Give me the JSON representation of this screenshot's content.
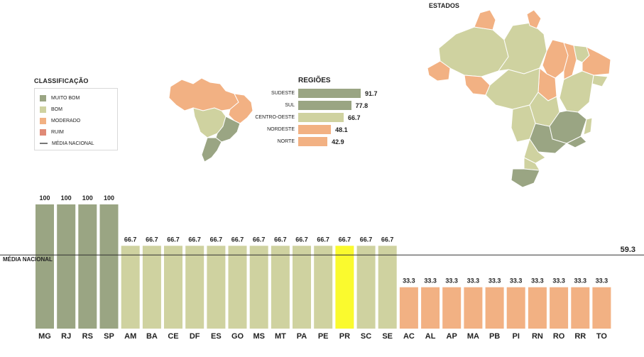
{
  "colors": {
    "muito_bom": "#9aa583",
    "bom": "#cfd2a0",
    "moderado": "#f2b183",
    "ruim": "#e08a76",
    "highlight": "#fafa2e",
    "media_line": "#333333"
  },
  "legend": {
    "title": "CLASSIFICAÇÃO",
    "items": [
      {
        "label": "MUITO BOM",
        "color": "#9aa583"
      },
      {
        "label": "BOM",
        "color": "#cfd2a0"
      },
      {
        "label": "MODERADO",
        "color": "#f2b183"
      },
      {
        "label": "RUIM",
        "color": "#e08a76"
      }
    ],
    "line_label": "MÉDIA NACIONAL"
  },
  "maps": {
    "regions_title": "REGIÕES",
    "states_title": "ESTADOS"
  },
  "chart_data": [
    {
      "type": "bar",
      "title": "REGIÕES",
      "orientation": "horizontal",
      "categories": [
        "SUDESTE",
        "SUL",
        "CENTRO-OESTE",
        "NORDESTE",
        "NORTE"
      ],
      "values": [
        91.7,
        77.8,
        66.7,
        48.1,
        42.9
      ],
      "value_labels": [
        "91.7",
        "77.8",
        "66.7",
        "48.1",
        "42.9"
      ],
      "colors": [
        "#9aa583",
        "#9aa583",
        "#cfd2a0",
        "#f2b183",
        "#f2b183"
      ]
    },
    {
      "type": "bar",
      "categories": [
        "MG",
        "RJ",
        "RS",
        "SP",
        "AM",
        "BA",
        "CE",
        "DF",
        "ES",
        "GO",
        "MS",
        "MT",
        "PA",
        "PE",
        "PR",
        "SC",
        "SE",
        "AC",
        "AL",
        "AP",
        "MA",
        "PB",
        "PI",
        "RN",
        "RO",
        "RR",
        "TO"
      ],
      "values": [
        100,
        100,
        100,
        100,
        66.7,
        66.7,
        66.7,
        66.7,
        66.7,
        66.7,
        66.7,
        66.7,
        66.7,
        66.7,
        66.7,
        66.7,
        66.7,
        33.3,
        33.3,
        33.3,
        33.3,
        33.3,
        33.3,
        33.3,
        33.3,
        33.3,
        33.3
      ],
      "value_labels": [
        "100",
        "100",
        "100",
        "100",
        "66.7",
        "66.7",
        "66.7",
        "66.7",
        "66.7",
        "66.7",
        "66.7",
        "66.7",
        "66.7",
        "66.7",
        "66.7",
        "66.7",
        "66.7",
        "33.3",
        "33.3",
        "33.3",
        "33.3",
        "33.3",
        "33.3",
        "33.3",
        "33.3",
        "33.3",
        "33.3"
      ],
      "colors": [
        "#9aa583",
        "#9aa583",
        "#9aa583",
        "#9aa583",
        "#cfd2a0",
        "#cfd2a0",
        "#cfd2a0",
        "#cfd2a0",
        "#cfd2a0",
        "#cfd2a0",
        "#cfd2a0",
        "#cfd2a0",
        "#cfd2a0",
        "#cfd2a0",
        "#fafa2e",
        "#cfd2a0",
        "#cfd2a0",
        "#f2b183",
        "#f2b183",
        "#f2b183",
        "#f2b183",
        "#f2b183",
        "#f2b183",
        "#f2b183",
        "#f2b183",
        "#f2b183",
        "#f2b183"
      ],
      "ylim": [
        0,
        100
      ],
      "reference_line": {
        "label": "MÉDIA NACIONAL",
        "value": 59.3,
        "value_label": "59.3"
      }
    }
  ]
}
